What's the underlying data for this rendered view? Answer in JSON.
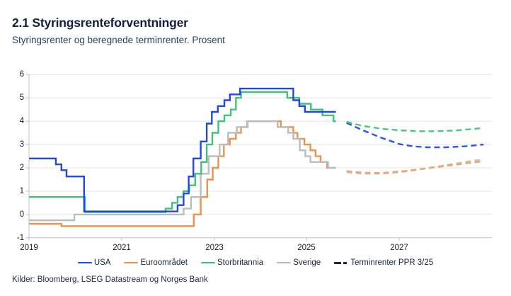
{
  "chart_data": {
    "type": "line",
    "title": "2.1 Styringsrenteforventninger",
    "subtitle": "Styringsrenter og beregnede terminrenter. Prosent",
    "source": "Kilder: Bloomberg, LSEG Datastream og Norges Bank",
    "xlim": [
      2019,
      2029
    ],
    "ylim": [
      -1,
      6
    ],
    "grid": true,
    "legend_position": "bottom",
    "yticks": [
      6,
      5,
      4,
      3,
      2,
      1,
      0,
      -1
    ],
    "xticks": [
      2019,
      2021,
      2023,
      2025,
      2027
    ],
    "series": [
      {
        "name": "Euroområdet",
        "color": "#f0914b",
        "step": true,
        "dashed": false,
        "end": 2025.63,
        "points": [
          [
            2019.0,
            -0.4
          ],
          [
            2019.7,
            -0.5
          ],
          [
            2022.56,
            0.0
          ],
          [
            2022.71,
            0.75
          ],
          [
            2022.85,
            1.5
          ],
          [
            2022.97,
            2.0
          ],
          [
            2023.09,
            2.5
          ],
          [
            2023.21,
            3.0
          ],
          [
            2023.34,
            3.25
          ],
          [
            2023.47,
            3.5
          ],
          [
            2023.58,
            3.75
          ],
          [
            2023.72,
            4.0
          ],
          [
            2024.44,
            3.75
          ],
          [
            2024.71,
            3.5
          ],
          [
            2024.8,
            3.25
          ],
          [
            2024.95,
            3.0
          ],
          [
            2025.08,
            2.75
          ],
          [
            2025.19,
            2.5
          ],
          [
            2025.3,
            2.25
          ],
          [
            2025.44,
            2.0
          ]
        ]
      },
      {
        "name": "Sverige",
        "color": "#b9bdc1",
        "step": true,
        "dashed": false,
        "end": 2025.63,
        "points": [
          [
            2019.0,
            -0.25
          ],
          [
            2019.98,
            0.0
          ],
          [
            2022.34,
            0.25
          ],
          [
            2022.5,
            0.75
          ],
          [
            2022.71,
            1.75
          ],
          [
            2022.88,
            2.5
          ],
          [
            2023.12,
            3.0
          ],
          [
            2023.3,
            3.5
          ],
          [
            2023.49,
            3.75
          ],
          [
            2023.71,
            4.0
          ],
          [
            2024.37,
            3.75
          ],
          [
            2024.6,
            3.5
          ],
          [
            2024.71,
            3.25
          ],
          [
            2024.85,
            2.75
          ],
          [
            2024.97,
            2.5
          ],
          [
            2025.08,
            2.25
          ],
          [
            2025.46,
            2.0
          ]
        ]
      },
      {
        "name": "Storbritannia",
        "color": "#3fc377",
        "step": true,
        "dashed": false,
        "end": 2025.63,
        "points": [
          [
            2019.0,
            0.75
          ],
          [
            2020.21,
            0.1
          ],
          [
            2021.95,
            0.25
          ],
          [
            2022.09,
            0.5
          ],
          [
            2022.21,
            0.75
          ],
          [
            2022.34,
            1.0
          ],
          [
            2022.46,
            1.25
          ],
          [
            2022.59,
            1.75
          ],
          [
            2022.72,
            2.25
          ],
          [
            2022.84,
            3.0
          ],
          [
            2022.96,
            3.5
          ],
          [
            2023.09,
            4.0
          ],
          [
            2023.22,
            4.25
          ],
          [
            2023.36,
            4.5
          ],
          [
            2023.47,
            5.0
          ],
          [
            2023.58,
            5.25
          ],
          [
            2024.58,
            5.0
          ],
          [
            2024.84,
            4.75
          ],
          [
            2025.09,
            4.5
          ],
          [
            2025.34,
            4.25
          ],
          [
            2025.58,
            4.0
          ]
        ]
      },
      {
        "name": "USA",
        "color": "#2447dd",
        "step": true,
        "dashed": false,
        "end": 2025.63,
        "points": [
          [
            2019.0,
            2.4
          ],
          [
            2019.58,
            2.15
          ],
          [
            2019.7,
            1.9
          ],
          [
            2019.81,
            1.63
          ],
          [
            2020.19,
            0.13
          ],
          [
            2022.21,
            0.4
          ],
          [
            2022.34,
            0.9
          ],
          [
            2022.45,
            1.63
          ],
          [
            2022.55,
            2.4
          ],
          [
            2022.71,
            3.13
          ],
          [
            2022.84,
            3.9
          ],
          [
            2022.95,
            4.4
          ],
          [
            2023.08,
            4.65
          ],
          [
            2023.22,
            4.9
          ],
          [
            2023.34,
            5.15
          ],
          [
            2023.56,
            5.4
          ],
          [
            2024.71,
            4.9
          ],
          [
            2024.84,
            4.65
          ],
          [
            2024.96,
            4.4
          ]
        ]
      },
      {
        "name": "Sverige terminrenter",
        "color": "#c6c4c0",
        "step": false,
        "dashed": true,
        "points": [
          [
            2025.86,
            1.81
          ],
          [
            2026.2,
            1.75
          ],
          [
            2026.6,
            1.75
          ],
          [
            2027.0,
            1.81
          ],
          [
            2027.4,
            1.92
          ],
          [
            2027.8,
            2.05
          ],
          [
            2028.2,
            2.18
          ],
          [
            2028.5,
            2.28
          ],
          [
            2028.82,
            2.36
          ]
        ]
      },
      {
        "name": "Euroområdet terminrenter",
        "color": "#f0a466",
        "step": false,
        "dashed": true,
        "points": [
          [
            2025.86,
            1.86
          ],
          [
            2026.2,
            1.79
          ],
          [
            2026.6,
            1.78
          ],
          [
            2027.0,
            1.84
          ],
          [
            2027.4,
            1.93
          ],
          [
            2027.8,
            2.03
          ],
          [
            2028.2,
            2.13
          ],
          [
            2028.5,
            2.21
          ],
          [
            2028.82,
            2.28
          ]
        ]
      },
      {
        "name": "USA terminrenter",
        "color": "#2b55ec",
        "step": false,
        "dashed": true,
        "points": [
          [
            2025.86,
            3.93
          ],
          [
            2026.2,
            3.62
          ],
          [
            2026.6,
            3.3
          ],
          [
            2027.0,
            3.02
          ],
          [
            2027.3,
            2.92
          ],
          [
            2027.6,
            2.88
          ],
          [
            2028.0,
            2.88
          ],
          [
            2028.4,
            2.92
          ],
          [
            2028.82,
            3.0
          ]
        ]
      },
      {
        "name": "Storbritannia terminrenter",
        "color": "#49c77e",
        "step": false,
        "dashed": true,
        "points": [
          [
            2025.86,
            3.97
          ],
          [
            2026.2,
            3.8
          ],
          [
            2026.6,
            3.68
          ],
          [
            2027.0,
            3.61
          ],
          [
            2027.4,
            3.57
          ],
          [
            2027.8,
            3.57
          ],
          [
            2028.2,
            3.6
          ],
          [
            2028.5,
            3.65
          ],
          [
            2028.82,
            3.71
          ]
        ]
      }
    ],
    "legend": [
      {
        "label": "USA",
        "color": "#2447dd",
        "dashed": false
      },
      {
        "label": "Euroområdet",
        "color": "#f0914b",
        "dashed": false
      },
      {
        "label": "Storbritannia",
        "color": "#3fc377",
        "dashed": false
      },
      {
        "label": "Sverige",
        "color": "#b9bdc1",
        "dashed": false
      },
      {
        "label": "Terminrenter PPR 3/25",
        "color": "#1c2440",
        "dashed": true
      }
    ],
    "colors": {
      "grid": "#e4e5e9",
      "axis": "#c2c3c7",
      "title_text": "#15213c",
      "subtitle_text": "#2b425f"
    }
  }
}
